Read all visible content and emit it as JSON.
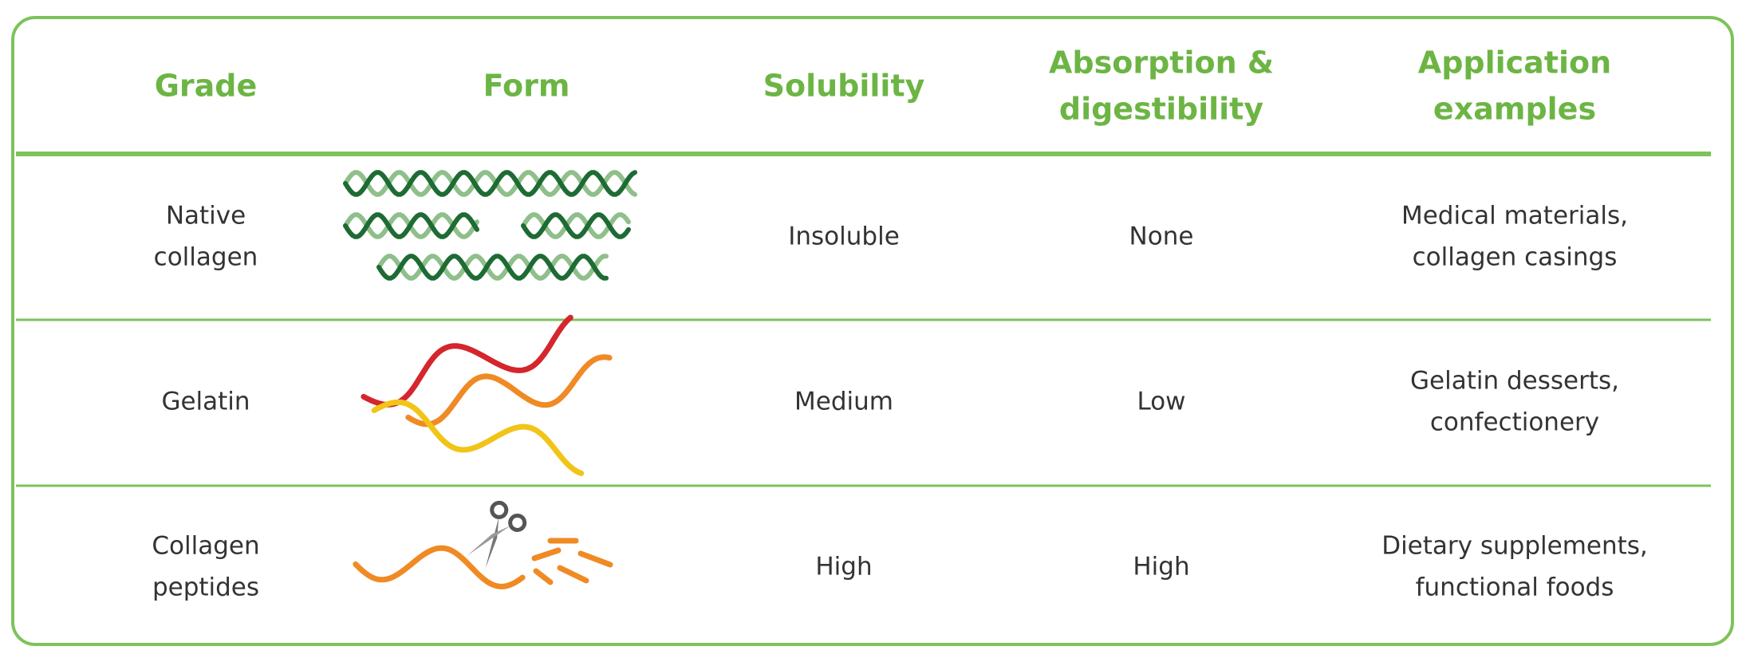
{
  "table": {
    "header": [
      [
        "Grade"
      ],
      [
        "Form"
      ],
      [
        "Solubility"
      ],
      [
        "Absorption &",
        "digestibility"
      ],
      [
        "Application",
        "examples"
      ]
    ],
    "rows": [
      [
        [
          "Native",
          "collagen"
        ],
        [
          "Insoluble"
        ],
        [
          "None"
        ],
        [
          "Medical materials,",
          "collagen casings"
        ]
      ],
      [
        [
          "Gelatin"
        ],
        [
          "Medium"
        ],
        [
          "Low"
        ],
        [
          "Gelatin desserts,",
          "confectionery"
        ]
      ],
      [
        [
          "Collagen",
          "peptides"
        ],
        [
          "High"
        ],
        [
          "High"
        ],
        [
          "Dietary supplements,",
          "functional foods"
        ]
      ]
    ]
  }
}
